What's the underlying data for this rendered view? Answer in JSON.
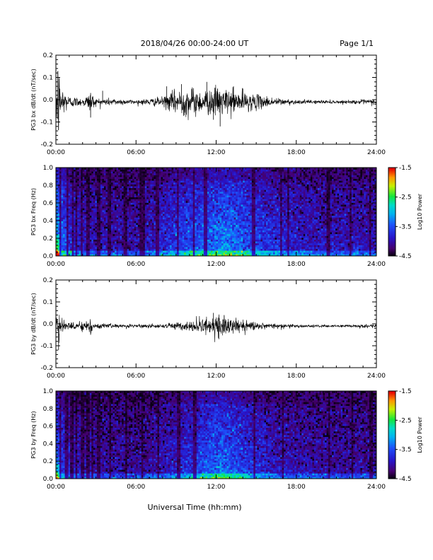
{
  "header": {
    "title": "2018/04/26  00:00-24:00 UT",
    "page": "Page 1/1"
  },
  "footer": {
    "xlabel": "Universal Time (hh:mm)"
  },
  "chart_data": [
    {
      "type": "line",
      "ylabel": "PG3 bx dB/dt (nT/sec)",
      "xlim": [
        0,
        24
      ],
      "ylim": [
        -0.2,
        0.2
      ],
      "xticks": [
        "00:00",
        "06:00",
        "12:00",
        "18:00",
        "24:00"
      ],
      "yticks": [
        "-0.2",
        "-0.1",
        "0.0",
        "0.1",
        "0.2"
      ],
      "baseline": -0.01,
      "envelope": [
        {
          "t": 0.0,
          "amp": 0.06
        },
        {
          "t": 0.15,
          "amp": 0.2
        },
        {
          "t": 0.3,
          "amp": 0.1
        },
        {
          "t": 0.6,
          "amp": 0.05
        },
        {
          "t": 1.0,
          "amp": 0.025
        },
        {
          "t": 2.0,
          "amp": 0.015
        },
        {
          "t": 2.6,
          "amp": 0.04
        },
        {
          "t": 3.0,
          "amp": 0.015
        },
        {
          "t": 4.0,
          "amp": 0.015
        },
        {
          "t": 6.0,
          "amp": 0.008
        },
        {
          "t": 8.0,
          "amp": 0.02
        },
        {
          "t": 9.0,
          "amp": 0.05
        },
        {
          "t": 10.0,
          "amp": 0.06
        },
        {
          "t": 11.0,
          "amp": 0.045
        },
        {
          "t": 12.0,
          "amp": 0.06
        },
        {
          "t": 13.0,
          "amp": 0.05
        },
        {
          "t": 14.0,
          "amp": 0.04
        },
        {
          "t": 15.0,
          "amp": 0.03
        },
        {
          "t": 16.0,
          "amp": 0.02
        },
        {
          "t": 18.0,
          "amp": 0.008
        },
        {
          "t": 22.0,
          "amp": 0.006
        },
        {
          "t": 23.6,
          "amp": 0.012
        },
        {
          "t": 24.0,
          "amp": 0.008
        }
      ],
      "spikes": [
        {
          "t": 2.6,
          "v": -0.08
        },
        {
          "t": 2.6,
          "v": 0.03
        },
        {
          "t": 3.5,
          "v": 0.04
        },
        {
          "t": 8.3,
          "v": 0.06
        },
        {
          "t": 9.4,
          "v": 0.07
        },
        {
          "t": 9.6,
          "v": -0.07
        },
        {
          "t": 11.3,
          "v": 0.08
        },
        {
          "t": 11.8,
          "v": -0.09
        },
        {
          "t": 12.1,
          "v": 0.05
        },
        {
          "t": 12.3,
          "v": -0.12
        },
        {
          "t": 13.3,
          "v": 0.06
        },
        {
          "t": 14.0,
          "v": 0.05
        }
      ],
      "color": "#000000"
    },
    {
      "type": "heatmap",
      "ylabel": "PG3 bx Freq (Hz)",
      "colorbar_label": "Log10 Power",
      "colorbar_ticks": [
        "-1.5",
        "-2.5",
        "-3.5",
        "-4.5"
      ],
      "clim": [
        -4.5,
        -1.5
      ],
      "xlim": [
        0,
        24
      ],
      "ylim": [
        0.0,
        1.0
      ],
      "xticks": [
        "00:00",
        "06:00",
        "12:00",
        "18:00",
        "24:00"
      ],
      "yticks": [
        "0.0",
        "0.2",
        "0.4",
        "0.6",
        "0.8",
        "1.0"
      ],
      "activity": [
        {
          "t": 0.0,
          "a": 0.9
        },
        {
          "t": 0.5,
          "a": 0.6
        },
        {
          "t": 1.5,
          "a": 0.35
        },
        {
          "t": 3.0,
          "a": 0.3
        },
        {
          "t": 6.0,
          "a": 0.25
        },
        {
          "t": 8.0,
          "a": 0.4
        },
        {
          "t": 10.0,
          "a": 0.55
        },
        {
          "t": 12.0,
          "a": 0.65
        },
        {
          "t": 13.0,
          "a": 0.7
        },
        {
          "t": 14.0,
          "a": 0.6
        },
        {
          "t": 16.0,
          "a": 0.45
        },
        {
          "t": 18.0,
          "a": 0.35
        },
        {
          "t": 21.0,
          "a": 0.3
        },
        {
          "t": 24.0,
          "a": 0.3
        }
      ],
      "dark_stripes": [
        0.35,
        0.9,
        1.3,
        1.5,
        1.9,
        2.4,
        3.1,
        3.3,
        4.0,
        5.2,
        6.4,
        6.6,
        7.6,
        9.1,
        10.3,
        11.2,
        14.8,
        16.9,
        17.4,
        20.4,
        22.1,
        23.5
      ]
    },
    {
      "type": "line",
      "ylabel": "PG3 by dB/dt (nT/sec)",
      "xlim": [
        0,
        24
      ],
      "ylim": [
        -0.2,
        0.2
      ],
      "xticks": [
        "00:00",
        "06:00",
        "12:00",
        "18:00",
        "24:00"
      ],
      "yticks": [
        "-0.2",
        "-0.1",
        "0.0",
        "0.1",
        "0.2"
      ],
      "baseline": -0.01,
      "envelope": [
        {
          "t": 0.0,
          "amp": 0.03
        },
        {
          "t": 0.2,
          "amp": 0.08
        },
        {
          "t": 0.4,
          "amp": 0.05
        },
        {
          "t": 0.8,
          "amp": 0.02
        },
        {
          "t": 1.5,
          "amp": 0.012
        },
        {
          "t": 2.5,
          "amp": 0.03
        },
        {
          "t": 3.0,
          "amp": 0.01
        },
        {
          "t": 6.0,
          "amp": 0.006
        },
        {
          "t": 8.0,
          "amp": 0.008
        },
        {
          "t": 10.0,
          "amp": 0.02
        },
        {
          "t": 11.0,
          "amp": 0.035
        },
        {
          "t": 12.0,
          "amp": 0.045
        },
        {
          "t": 13.0,
          "amp": 0.035
        },
        {
          "t": 14.0,
          "amp": 0.025
        },
        {
          "t": 16.0,
          "amp": 0.012
        },
        {
          "t": 18.0,
          "amp": 0.006
        },
        {
          "t": 22.0,
          "amp": 0.005
        },
        {
          "t": 23.6,
          "amp": 0.01
        },
        {
          "t": 24.0,
          "amp": 0.006
        }
      ],
      "spikes": [
        {
          "t": 0.2,
          "v": -0.12
        },
        {
          "t": 2.6,
          "v": -0.05
        },
        {
          "t": 11.8,
          "v": 0.05
        },
        {
          "t": 12.2,
          "v": -0.07
        },
        {
          "t": 12.6,
          "v": 0.04
        }
      ],
      "color": "#000000"
    },
    {
      "type": "heatmap",
      "ylabel": "PG3 by Freq (Hz)",
      "colorbar_label": "Log10 Power",
      "colorbar_ticks": [
        "-1.5",
        "-2.5",
        "-3.5",
        "-4.5"
      ],
      "clim": [
        -4.5,
        -1.5
      ],
      "xlim": [
        0,
        24
      ],
      "ylim": [
        0.0,
        1.0
      ],
      "xticks": [
        "00:00",
        "06:00",
        "12:00",
        "18:00",
        "24:00"
      ],
      "yticks": [
        "0.0",
        "0.2",
        "0.4",
        "0.6",
        "0.8",
        "1.0"
      ],
      "activity": [
        {
          "t": 0.0,
          "a": 0.6
        },
        {
          "t": 0.5,
          "a": 0.45
        },
        {
          "t": 1.5,
          "a": 0.3
        },
        {
          "t": 3.0,
          "a": 0.25
        },
        {
          "t": 6.0,
          "a": 0.2
        },
        {
          "t": 8.0,
          "a": 0.3
        },
        {
          "t": 10.0,
          "a": 0.45
        },
        {
          "t": 12.0,
          "a": 0.65
        },
        {
          "t": 13.0,
          "a": 0.6
        },
        {
          "t": 14.0,
          "a": 0.5
        },
        {
          "t": 16.0,
          "a": 0.35
        },
        {
          "t": 18.0,
          "a": 0.28
        },
        {
          "t": 21.0,
          "a": 0.25
        },
        {
          "t": 24.0,
          "a": 0.25
        }
      ],
      "dark_stripes": [
        0.3,
        0.8,
        1.2,
        1.5,
        2.0,
        2.4,
        2.7,
        3.2,
        4.1,
        5.3,
        6.5,
        7.7,
        9.2,
        10.4,
        14.9,
        17.0,
        20.5,
        22.2,
        23.6
      ]
    }
  ]
}
